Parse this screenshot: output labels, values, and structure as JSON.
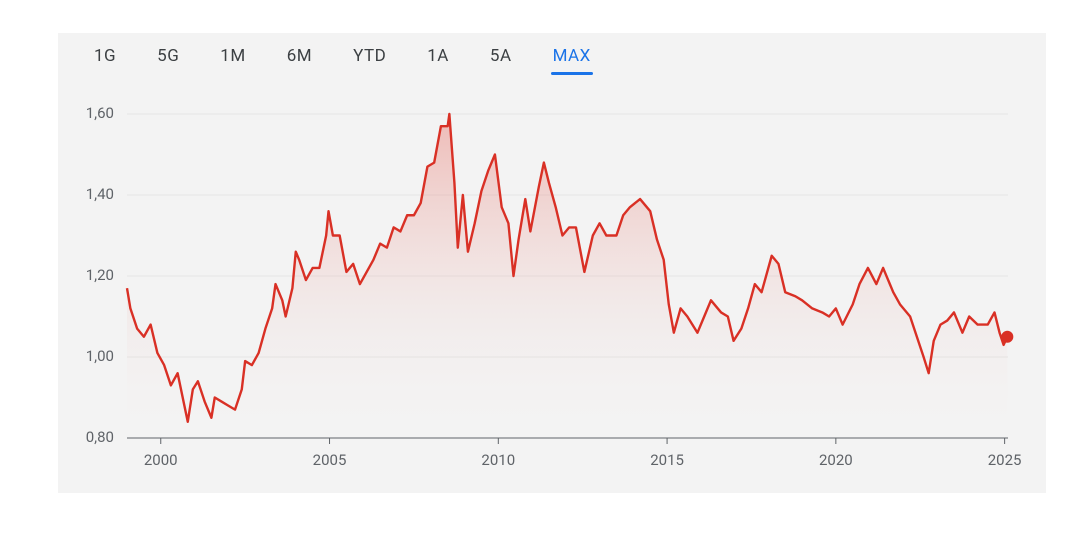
{
  "tabs": [
    {
      "label": "1G"
    },
    {
      "label": "5G"
    },
    {
      "label": "1M"
    },
    {
      "label": "6M"
    },
    {
      "label": "YTD"
    },
    {
      "label": "1A"
    },
    {
      "label": "5A"
    },
    {
      "label": "MAX",
      "active": true
    }
  ],
  "chart_data": {
    "type": "line",
    "color": "#d93025",
    "x": [
      1999.0,
      1999.1,
      1999.3,
      1999.5,
      1999.7,
      1999.9,
      2000.1,
      2000.3,
      2000.5,
      2000.7,
      2000.8,
      2000.95,
      2001.1,
      2001.3,
      2001.5,
      2001.6,
      2001.8,
      2002.0,
      2002.2,
      2002.4,
      2002.5,
      2002.7,
      2002.9,
      2003.1,
      2003.3,
      2003.4,
      2003.6,
      2003.7,
      2003.9,
      2004.0,
      2004.1,
      2004.3,
      2004.5,
      2004.7,
      2004.9,
      2004.97,
      2005.1,
      2005.3,
      2005.5,
      2005.7,
      2005.9,
      2006.1,
      2006.3,
      2006.5,
      2006.7,
      2006.9,
      2007.1,
      2007.3,
      2007.5,
      2007.7,
      2007.9,
      2008.1,
      2008.3,
      2008.5,
      2008.55,
      2008.7,
      2008.8,
      2008.95,
      2009.1,
      2009.3,
      2009.5,
      2009.7,
      2009.9,
      2010.1,
      2010.3,
      2010.45,
      2010.6,
      2010.8,
      2010.95,
      2011.2,
      2011.35,
      2011.5,
      2011.7,
      2011.9,
      2012.1,
      2012.3,
      2012.55,
      2012.8,
      2013.0,
      2013.2,
      2013.5,
      2013.7,
      2013.9,
      2014.2,
      2014.5,
      2014.7,
      2014.9,
      2015.05,
      2015.2,
      2015.4,
      2015.6,
      2015.9,
      2016.1,
      2016.3,
      2016.6,
      2016.8,
      2016.97,
      2017.2,
      2017.4,
      2017.6,
      2017.8,
      2018.1,
      2018.3,
      2018.5,
      2018.8,
      2019.0,
      2019.3,
      2019.6,
      2019.8,
      2020.0,
      2020.2,
      2020.5,
      2020.7,
      2020.95,
      2021.2,
      2021.4,
      2021.7,
      2021.9,
      2022.2,
      2022.4,
      2022.6,
      2022.75,
      2022.9,
      2023.1,
      2023.3,
      2023.5,
      2023.75,
      2023.95,
      2024.2,
      2024.5,
      2024.7,
      2024.85,
      2024.97,
      2025.08
    ],
    "values": [
      1.17,
      1.12,
      1.07,
      1.05,
      1.08,
      1.01,
      0.98,
      0.93,
      0.96,
      0.88,
      0.84,
      0.92,
      0.94,
      0.89,
      0.85,
      0.9,
      0.89,
      0.88,
      0.87,
      0.92,
      0.99,
      0.98,
      1.01,
      1.07,
      1.12,
      1.18,
      1.14,
      1.1,
      1.17,
      1.26,
      1.24,
      1.19,
      1.22,
      1.22,
      1.3,
      1.36,
      1.3,
      1.3,
      1.21,
      1.23,
      1.18,
      1.21,
      1.24,
      1.28,
      1.27,
      1.32,
      1.31,
      1.35,
      1.35,
      1.38,
      1.47,
      1.48,
      1.57,
      1.57,
      1.6,
      1.43,
      1.27,
      1.4,
      1.26,
      1.33,
      1.41,
      1.46,
      1.5,
      1.37,
      1.33,
      1.2,
      1.29,
      1.39,
      1.31,
      1.42,
      1.48,
      1.43,
      1.37,
      1.3,
      1.32,
      1.32,
      1.21,
      1.3,
      1.33,
      1.3,
      1.3,
      1.35,
      1.37,
      1.39,
      1.36,
      1.29,
      1.24,
      1.13,
      1.06,
      1.12,
      1.1,
      1.06,
      1.1,
      1.14,
      1.11,
      1.1,
      1.04,
      1.07,
      1.12,
      1.18,
      1.16,
      1.25,
      1.23,
      1.16,
      1.15,
      1.14,
      1.12,
      1.11,
      1.1,
      1.12,
      1.08,
      1.13,
      1.18,
      1.22,
      1.18,
      1.22,
      1.16,
      1.13,
      1.1,
      1.05,
      1.0,
      0.96,
      1.04,
      1.08,
      1.09,
      1.11,
      1.06,
      1.1,
      1.08,
      1.08,
      1.11,
      1.06,
      1.03,
      1.05
    ],
    "xlim": [
      1999.0,
      2025.1
    ],
    "xticks": [
      2000,
      2005,
      2010,
      2015,
      2020,
      2025
    ],
    "ylim": [
      0.8,
      1.6
    ],
    "yticks": [
      {
        "value": 0.8,
        "label": "0,80"
      },
      {
        "value": 1.0,
        "label": "1,00"
      },
      {
        "value": 1.2,
        "label": "1,20"
      },
      {
        "value": 1.4,
        "label": "1,40"
      },
      {
        "value": 1.6,
        "label": "1,60"
      }
    ],
    "grid": true,
    "end_marker": true
  }
}
